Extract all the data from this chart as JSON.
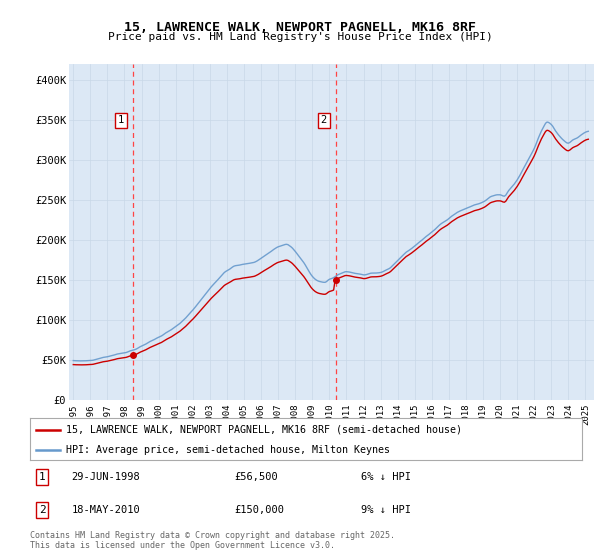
{
  "title": "15, LAWRENCE WALK, NEWPORT PAGNELL, MK16 8RF",
  "subtitle": "Price paid vs. HM Land Registry's House Price Index (HPI)",
  "legend_line1": "15, LAWRENCE WALK, NEWPORT PAGNELL, MK16 8RF (semi-detached house)",
  "legend_line2": "HPI: Average price, semi-detached house, Milton Keynes",
  "annotation1_date": "29-JUN-1998",
  "annotation1_price": "£56,500",
  "annotation1_hpi": "6% ↓ HPI",
  "annotation2_date": "18-MAY-2010",
  "annotation2_price": "£150,000",
  "annotation2_hpi": "9% ↓ HPI",
  "copyright": "Contains HM Land Registry data © Crown copyright and database right 2025.\nThis data is licensed under the Open Government Licence v3.0.",
  "hpi_color": "#6699cc",
  "price_color": "#cc0000",
  "vline_color": "#ff4444",
  "bg_color": "#dce8f5",
  "plot_bg": "#ffffff",
  "ylim": [
    0,
    420000
  ],
  "xlim_start": 1994.75,
  "xlim_end": 2025.5,
  "ytick_vals": [
    0,
    50000,
    100000,
    150000,
    200000,
    250000,
    300000,
    350000,
    400000
  ],
  "ytick_labels": [
    "£0",
    "£50K",
    "£100K",
    "£150K",
    "£200K",
    "£250K",
    "£300K",
    "£350K",
    "£400K"
  ],
  "xticks": [
    1995,
    1996,
    1997,
    1998,
    1999,
    2000,
    2001,
    2002,
    2003,
    2004,
    2005,
    2006,
    2007,
    2008,
    2009,
    2010,
    2011,
    2012,
    2013,
    2014,
    2015,
    2016,
    2017,
    2018,
    2019,
    2020,
    2021,
    2022,
    2023,
    2024,
    2025
  ],
  "sale1_x": 1998.497,
  "sale1_y": 56500,
  "sale2_x": 2010.375,
  "sale2_y": 150000,
  "hpi_start_year": 1995.0,
  "hpi_month_step": 0.08333
}
